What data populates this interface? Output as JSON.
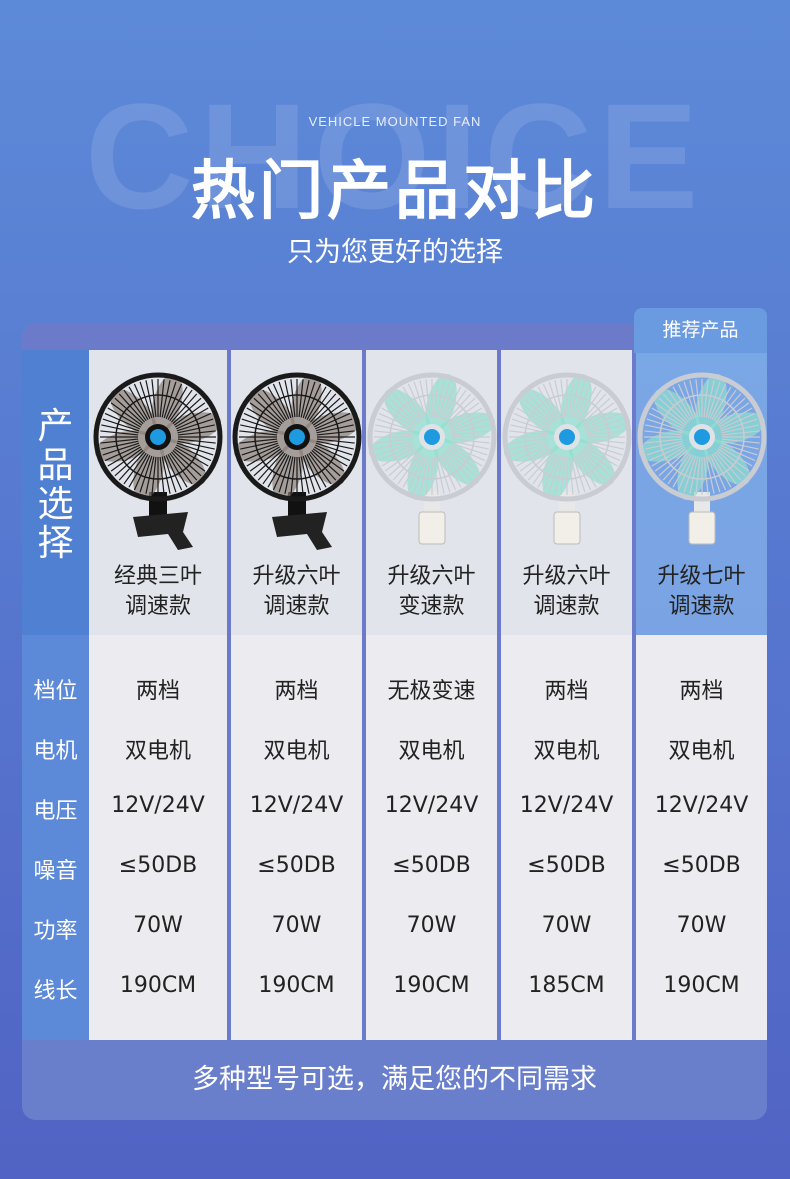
{
  "header": {
    "watermark": "CHOICE",
    "sub_en": "VEHICLE MOUNTED FAN",
    "title": "热门产品对比",
    "subtitle": "只为您更好的选择"
  },
  "table": {
    "recommended_badge": "推荐产品",
    "pick_label": "产品选择",
    "row_labels": [
      "档位",
      "电机",
      "电压",
      "噪音",
      "功率",
      "线长"
    ],
    "products": [
      {
        "name1": "经典三叶",
        "name2": "调速款",
        "style": "black",
        "specs": [
          "两档",
          "双电机",
          "12V/24V",
          "≤50DB",
          "70W",
          "190CM"
        ]
      },
      {
        "name1": "升级六叶",
        "name2": "调速款",
        "style": "black",
        "specs": [
          "两档",
          "双电机",
          "12V/24V",
          "≤50DB",
          "70W",
          "190CM"
        ]
      },
      {
        "name1": "升级六叶",
        "name2": "变速款",
        "style": "white",
        "specs": [
          "无极变速",
          "双电机",
          "12V/24V",
          "≤50DB",
          "70W",
          "190CM"
        ]
      },
      {
        "name1": "升级六叶",
        "name2": "调速款",
        "style": "white",
        "specs": [
          "两档",
          "双电机",
          "12V/24V",
          "≤50DB",
          "70W",
          "185CM"
        ]
      },
      {
        "name1": "升级七叶",
        "name2": "调速款",
        "style": "white",
        "specs": [
          "两档",
          "双电机",
          "12V/24V",
          "≤50DB",
          "70W",
          "190CM"
        ]
      }
    ]
  },
  "footer": {
    "text": "多种型号可选，满足您的不同需求"
  },
  "colors": {
    "accent": "#4f80d2",
    "card": "#6b7bc9",
    "blade": "#8fe0cf"
  }
}
